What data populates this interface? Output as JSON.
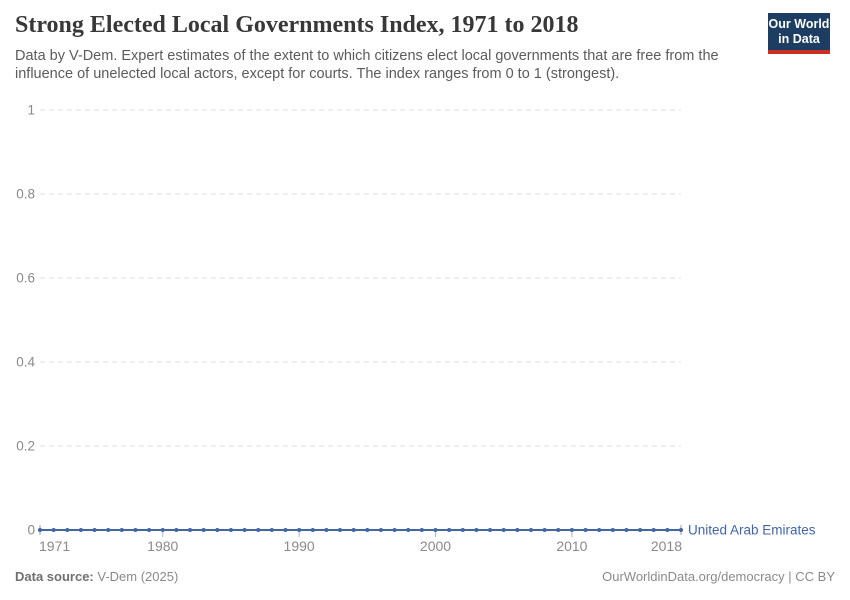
{
  "header": {
    "title": "Strong Elected Local Governments Index, 1971 to 2018",
    "subtitle": "Data by V-Dem. Expert estimates of the extent to which citizens elect local governments that are free from the influence of unelected local actors, except for courts. The index ranges from 0 to 1 (strongest)."
  },
  "logo": {
    "line1": "Our World",
    "line2": "in Data",
    "bg_color": "#1d3d63",
    "bar_color": "#cb3122"
  },
  "chart_data": {
    "type": "line",
    "title": "Strong Elected Local Governments Index, 1971 to 2018",
    "xlabel": "",
    "ylabel": "",
    "xlim": [
      1971,
      2018
    ],
    "ylim": [
      0,
      1
    ],
    "xticks": [
      1971,
      1980,
      1990,
      2000,
      2010,
      2018
    ],
    "yticks": [
      0,
      0.2,
      0.4,
      0.6,
      0.8,
      1
    ],
    "grid": "horizontal dashed",
    "legend_position": "line-end-label",
    "series": [
      {
        "name": "United Arab Emirates",
        "color": "#4165a5",
        "x": [
          1971,
          1972,
          1973,
          1974,
          1975,
          1976,
          1977,
          1978,
          1979,
          1980,
          1981,
          1982,
          1983,
          1984,
          1985,
          1986,
          1987,
          1988,
          1989,
          1990,
          1991,
          1992,
          1993,
          1994,
          1995,
          1996,
          1997,
          1998,
          1999,
          2000,
          2001,
          2002,
          2003,
          2004,
          2005,
          2006,
          2007,
          2008,
          2009,
          2010,
          2011,
          2012,
          2013,
          2014,
          2015,
          2016,
          2017,
          2018
        ],
        "values": [
          0,
          0,
          0,
          0,
          0,
          0,
          0,
          0,
          0,
          0,
          0,
          0,
          0,
          0,
          0,
          0,
          0,
          0,
          0,
          0,
          0,
          0,
          0,
          0,
          0,
          0,
          0,
          0,
          0,
          0,
          0,
          0,
          0,
          0,
          0,
          0,
          0,
          0,
          0,
          0,
          0,
          0,
          0,
          0,
          0,
          0,
          0,
          0
        ]
      }
    ],
    "style": {
      "grid_color": "#dcdcdc",
      "tick_label_color": "#8a8a8a",
      "axis_tick_color": "#b3b3b3",
      "end_cap_color": "#9a9a9a"
    }
  },
  "footer": {
    "source_label": "Data source:",
    "source_value": "V-Dem (2025)",
    "attribution": "OurWorldinData.org/democracy | CC BY"
  }
}
